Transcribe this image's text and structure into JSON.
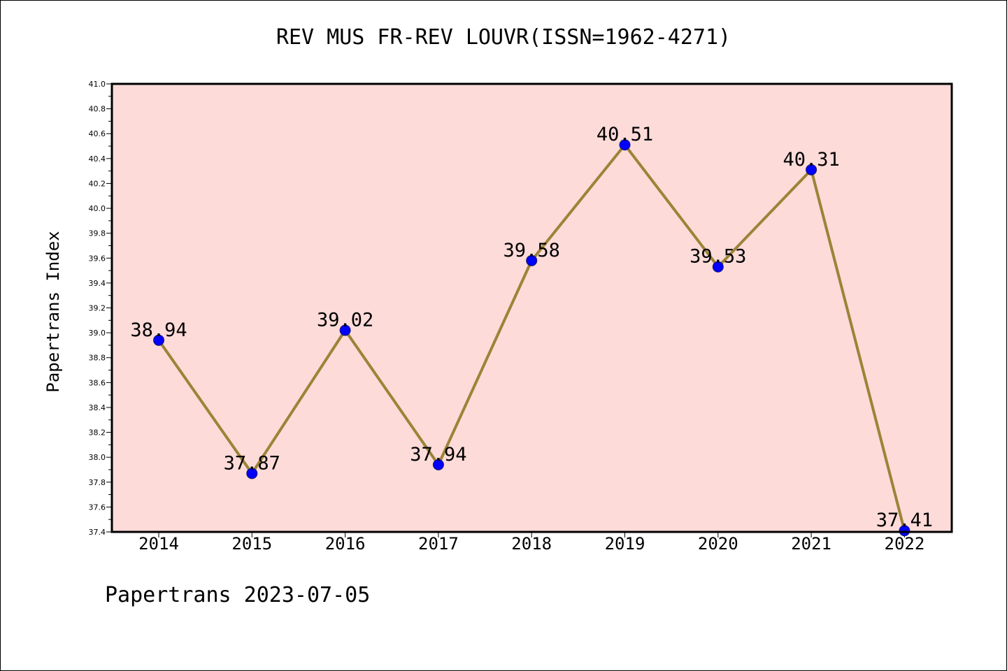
{
  "chart_data": {
    "type": "line",
    "title": "REV MUS FR-REV LOUVR(ISSN=1962-4271)",
    "xlabel": "",
    "ylabel": "Papertrans Index",
    "x": [
      "2014",
      "2015",
      "2016",
      "2017",
      "2018",
      "2019",
      "2020",
      "2021",
      "2022"
    ],
    "series": [
      {
        "name": "Papertrans Index",
        "values": [
          38.94,
          37.87,
          39.02,
          37.94,
          39.58,
          40.51,
          39.53,
          40.31,
          37.41
        ],
        "data_labels": [
          "38.94",
          "37.87",
          "39.02",
          "37.94",
          "39.58",
          "40.51",
          "39.53",
          "40.31",
          "37.41"
        ]
      }
    ],
    "ylim": [
      37.4,
      41.0
    ],
    "yticks": [
      "37.4",
      "37.6",
      "37.8",
      "38.0",
      "38.2",
      "38.4",
      "38.6",
      "38.8",
      "39.0",
      "39.2",
      "39.4",
      "39.6",
      "39.8",
      "40.0",
      "40.2",
      "40.4",
      "40.6",
      "40.8",
      "41.0"
    ],
    "grid": false,
    "legend": "none"
  },
  "footer": {
    "text": "Papertrans 2023-07-05"
  },
  "colors": {
    "plot_background": "#fddbd9",
    "line": "#9b8437",
    "marker": "#0000ff",
    "marker_edge": "#1a1a66",
    "axis": "#000000"
  }
}
